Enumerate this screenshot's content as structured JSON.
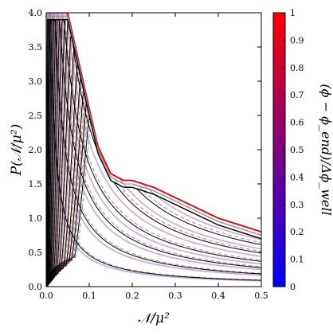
{
  "chart_data": {
    "type": "line",
    "xlabel": "𝒩/μ²",
    "ylabel": "P(𝒩/μ²)",
    "xlim": [
      0.0,
      0.5
    ],
    "ylim": [
      0.0,
      4.0
    ],
    "x_ticks": [
      "0.0",
      "0.1",
      "0.2",
      "0.3",
      "0.4",
      "0.5"
    ],
    "y_ticks": [
      "0.0",
      "0.5",
      "1.0",
      "1.5",
      "2.0",
      "2.5",
      "3.0",
      "3.5",
      "4.0"
    ],
    "grid": false,
    "colorbar": {
      "label": "(ϕ − ϕ_end)/Δϕ_well",
      "range": [
        0,
        1
      ],
      "ticks": [
        "0",
        "0.1",
        "0.2",
        "0.3",
        "0.4",
        "0.5",
        "0.6",
        "0.7",
        "0.8",
        "0.9",
        "1"
      ],
      "colormap": [
        "#0000ff",
        "#ff0000"
      ]
    },
    "series_styles": {
      "solid_line_color": "#000000",
      "dashed_line_color": "#999999",
      "colored_band": "shaded by colorbar value"
    },
    "families": {
      "black_solid": {
        "description": "sequence of distributions that broaden as the colorbar parameter increases",
        "peak_x": [
          0.003,
          0.006,
          0.009,
          0.012,
          0.016,
          0.02,
          0.025,
          0.03,
          0.036,
          0.043,
          0.051,
          0.06,
          0.07,
          0.082,
          0.095,
          0.11,
          0.125,
          0.14,
          0.155,
          0.17
        ],
        "tail_y_at_x_0_5": [
          0.02,
          0.04,
          0.07,
          0.1,
          0.14,
          0.18,
          0.23,
          0.28,
          0.33,
          0.38,
          0.44,
          0.5,
          0.56,
          0.62,
          0.68,
          0.74,
          0.8,
          0.86,
          0.92,
          0.98
        ]
      },
      "colored_envelope_x": [
        0.0,
        0.05,
        0.1,
        0.12,
        0.15,
        0.18,
        0.2,
        0.25,
        0.3,
        0.35,
        0.4,
        0.45,
        0.5
      ],
      "colored_envelope_y": [
        4.0,
        4.0,
        2.6,
        2.05,
        1.65,
        1.55,
        1.55,
        1.45,
        1.3,
        1.15,
        1.0,
        0.9,
        0.8
      ]
    }
  }
}
